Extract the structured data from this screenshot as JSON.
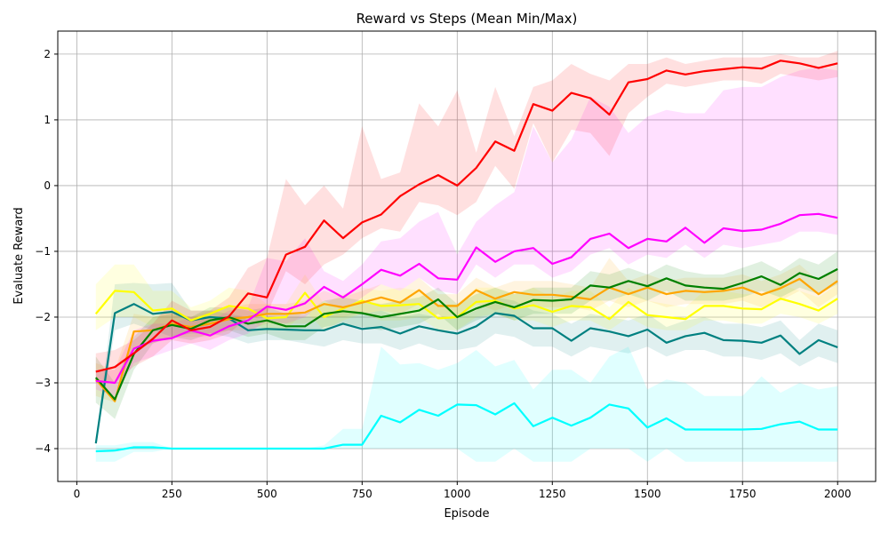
{
  "chart_data": {
    "type": "line",
    "title": "Reward vs Steps (Mean Min/Max)",
    "xlabel": "Episode",
    "ylabel": "Evaluate Reward",
    "xlim": [
      -50,
      2100
    ],
    "ylim": [
      -4.5,
      2.35
    ],
    "xticks": [
      0,
      250,
      500,
      750,
      1000,
      1250,
      1500,
      1750,
      2000
    ],
    "yticks": [
      -4,
      -3,
      -2,
      -1,
      0,
      1,
      2
    ],
    "grid": true,
    "x": [
      50,
      100,
      150,
      200,
      250,
      300,
      350,
      400,
      450,
      500,
      550,
      600,
      650,
      700,
      750,
      800,
      850,
      900,
      950,
      1000,
      1050,
      1100,
      1150,
      1200,
      1250,
      1300,
      1350,
      1400,
      1450,
      1500,
      1550,
      1600,
      1650,
      1700,
      1750,
      1800,
      1850,
      1900,
      1950,
      2000
    ],
    "series": [
      {
        "name": "cyan",
        "color": "#00ffff",
        "values": [
          -4.04,
          -4.03,
          -3.98,
          -3.98,
          -4.0,
          -4.0,
          -4.0,
          -4.0,
          -4.0,
          -4.0,
          -4.0,
          -4.0,
          -4.0,
          -3.94,
          -3.94,
          -3.5,
          -3.6,
          -3.41,
          -3.5,
          -3.33,
          -3.34,
          -3.48,
          -3.31,
          -3.66,
          -3.53,
          -3.65,
          -3.53,
          -3.33,
          -3.39,
          -3.68,
          -3.54,
          -3.71,
          -3.71,
          -3.71,
          -3.71,
          -3.7,
          -3.63,
          -3.59,
          -3.71,
          -3.71
        ],
        "min": [
          -4.2,
          -4.2,
          -4.05,
          -4.05,
          -4.0,
          -4.0,
          -4.0,
          -4.0,
          -4.0,
          -4.0,
          -4.0,
          -4.0,
          -4.0,
          -4.0,
          -4.0,
          -4.0,
          -4.0,
          -4.0,
          -4.0,
          -4.0,
          -4.2,
          -4.2,
          -4.0,
          -4.2,
          -4.2,
          -4.2,
          -4.0,
          -4.0,
          -4.0,
          -4.2,
          -4.0,
          -4.2,
          -4.2,
          -4.2,
          -4.2,
          -4.2,
          -4.2,
          -4.2,
          -4.2,
          -4.2
        ],
        "max": [
          -3.95,
          -3.95,
          -3.9,
          -3.9,
          -4.0,
          -4.0,
          -4.0,
          -4.0,
          -4.0,
          -4.0,
          -4.0,
          -4.0,
          -3.95,
          -3.7,
          -3.7,
          -2.45,
          -2.72,
          -2.7,
          -2.8,
          -2.7,
          -2.5,
          -2.75,
          -2.65,
          -3.1,
          -2.8,
          -2.8,
          -3.0,
          -2.6,
          -2.45,
          -3.1,
          -2.95,
          -3.0,
          -3.2,
          -3.2,
          -3.2,
          -2.9,
          -3.15,
          -3.0,
          -3.1,
          -3.05
        ]
      },
      {
        "name": "teal",
        "color": "#008080",
        "values": [
          -3.92,
          -1.94,
          -1.8,
          -1.95,
          -1.92,
          -2.05,
          -2.0,
          -2.02,
          -2.2,
          -2.18,
          -2.19,
          -2.2,
          -2.2,
          -2.1,
          -2.18,
          -2.15,
          -2.25,
          -2.14,
          -2.2,
          -2.25,
          -2.14,
          -1.94,
          -1.98,
          -2.17,
          -2.17,
          -2.36,
          -2.17,
          -2.22,
          -2.29,
          -2.19,
          -2.39,
          -2.29,
          -2.24,
          -2.35,
          -2.36,
          -2.39,
          -2.28,
          -2.56,
          -2.35,
          -2.46
        ],
        "min": [
          -3.95,
          -2.2,
          -2.1,
          -2.2,
          -2.3,
          -2.25,
          -2.25,
          -2.3,
          -2.4,
          -2.35,
          -2.35,
          -2.4,
          -2.45,
          -2.35,
          -2.4,
          -2.4,
          -2.5,
          -2.4,
          -2.5,
          -2.5,
          -2.45,
          -2.25,
          -2.3,
          -2.45,
          -2.45,
          -2.6,
          -2.45,
          -2.5,
          -2.55,
          -2.45,
          -2.6,
          -2.5,
          -2.5,
          -2.6,
          -2.6,
          -2.65,
          -2.55,
          -2.75,
          -2.6,
          -2.7
        ],
        "max": [
          -3.9,
          -1.5,
          -1.48,
          -1.5,
          -1.48,
          -1.9,
          -1.9,
          -1.95,
          -2.0,
          -2.0,
          -2.0,
          -2.0,
          -2.0,
          -1.9,
          -1.95,
          -1.9,
          -2.0,
          -1.95,
          -2.0,
          -2.0,
          -1.9,
          -1.7,
          -1.75,
          -1.9,
          -1.95,
          -2.1,
          -1.95,
          -2.0,
          -2.05,
          -1.95,
          -2.15,
          -2.05,
          -2.0,
          -2.1,
          -2.1,
          -2.15,
          -2.05,
          -2.35,
          -2.1,
          -2.2
        ]
      },
      {
        "name": "yellow",
        "color": "#ffff00",
        "values": [
          -1.95,
          -1.6,
          -1.62,
          -1.9,
          -1.87,
          -2.05,
          -1.95,
          -1.83,
          -1.87,
          -2.02,
          -2.0,
          -1.63,
          -2.0,
          -1.87,
          -1.75,
          -1.83,
          -1.82,
          -1.8,
          -2.02,
          -2.0,
          -1.77,
          -1.75,
          -1.87,
          -1.82,
          -1.92,
          -1.83,
          -1.85,
          -2.03,
          -1.77,
          -1.97,
          -2.0,
          -2.03,
          -1.83,
          -1.83,
          -1.87,
          -1.88,
          -1.72,
          -1.8,
          -1.9,
          -1.72
        ],
        "min": [
          -2.2,
          -2.0,
          -2.0,
          -2.15,
          -2.1,
          -2.2,
          -2.1,
          -2.05,
          -2.05,
          -2.2,
          -2.2,
          -1.9,
          -2.2,
          -2.05,
          -1.95,
          -2.05,
          -2.05,
          -2.0,
          -2.2,
          -2.2,
          -2.0,
          -1.95,
          -2.05,
          -2.05,
          -2.15,
          -2.05,
          -2.05,
          -2.2,
          -2.0,
          -2.15,
          -2.2,
          -2.2,
          -2.05,
          -2.05,
          -2.1,
          -2.1,
          -1.95,
          -2.0,
          -2.1,
          -1.95
        ],
        "max": [
          -1.5,
          -1.2,
          -1.2,
          -1.6,
          -1.6,
          -1.85,
          -1.75,
          -1.55,
          -1.6,
          -1.8,
          -1.8,
          -1.35,
          -1.8,
          -1.65,
          -1.55,
          -1.6,
          -1.55,
          -1.6,
          -1.8,
          -1.8,
          -1.55,
          -1.55,
          -1.65,
          -1.55,
          -1.7,
          -1.6,
          -1.6,
          -1.85,
          -1.55,
          -1.75,
          -1.8,
          -1.85,
          -1.6,
          -1.6,
          -1.65,
          -1.65,
          -1.5,
          -1.6,
          -1.7,
          -1.5
        ]
      },
      {
        "name": "orange",
        "color": "#ffa500",
        "values": [
          -2.95,
          -3.28,
          -2.22,
          -2.2,
          -2.1,
          -2.15,
          -2.1,
          -2.03,
          -2.0,
          -1.95,
          -1.95,
          -1.93,
          -1.8,
          -1.85,
          -1.78,
          -1.7,
          -1.78,
          -1.59,
          -1.83,
          -1.83,
          -1.59,
          -1.72,
          -1.62,
          -1.66,
          -1.66,
          -1.69,
          -1.73,
          -1.55,
          -1.65,
          -1.55,
          -1.65,
          -1.6,
          -1.62,
          -1.6,
          -1.55,
          -1.66,
          -1.56,
          -1.42,
          -1.65,
          -1.45
        ],
        "min": [
          -3.2,
          -3.3,
          -2.5,
          -2.4,
          -2.3,
          -2.3,
          -2.3,
          -2.2,
          -2.2,
          -2.1,
          -2.1,
          -2.1,
          -2.0,
          -2.0,
          -1.95,
          -1.9,
          -1.95,
          -1.8,
          -2.0,
          -2.0,
          -1.8,
          -1.9,
          -1.8,
          -1.85,
          -1.85,
          -1.85,
          -1.9,
          -1.75,
          -1.85,
          -1.75,
          -1.85,
          -1.8,
          -1.8,
          -1.8,
          -1.75,
          -1.85,
          -1.75,
          -1.6,
          -1.85,
          -1.65
        ],
        "max": [
          -2.7,
          -2.8,
          -1.95,
          -2.0,
          -1.9,
          -2.0,
          -1.9,
          -1.85,
          -1.8,
          -1.8,
          -1.8,
          -1.75,
          -1.6,
          -1.7,
          -1.6,
          -1.5,
          -1.6,
          -1.4,
          -1.65,
          -1.65,
          -1.4,
          -1.55,
          -1.45,
          -1.45,
          -1.45,
          -1.5,
          -1.55,
          -1.1,
          -1.45,
          -1.35,
          -1.45,
          -1.4,
          -1.4,
          -1.4,
          -1.35,
          -1.45,
          -1.35,
          -1.2,
          -1.45,
          -1.25
        ]
      },
      {
        "name": "green",
        "color": "#008000",
        "values": [
          -2.92,
          -3.25,
          -2.56,
          -2.2,
          -2.12,
          -2.18,
          -2.05,
          -2.0,
          -2.1,
          -2.05,
          -2.14,
          -2.14,
          -1.95,
          -1.91,
          -1.94,
          -2.0,
          -1.95,
          -1.9,
          -1.73,
          -2.0,
          -1.87,
          -1.77,
          -1.85,
          -1.74,
          -1.75,
          -1.73,
          -1.52,
          -1.55,
          -1.45,
          -1.53,
          -1.41,
          -1.52,
          -1.55,
          -1.57,
          -1.48,
          -1.38,
          -1.51,
          -1.33,
          -1.42,
          -1.27
        ],
        "min": [
          -3.3,
          -3.55,
          -2.8,
          -2.4,
          -2.3,
          -2.35,
          -2.25,
          -2.2,
          -2.3,
          -2.25,
          -2.35,
          -2.35,
          -2.15,
          -2.1,
          -2.15,
          -2.2,
          -2.15,
          -2.1,
          -1.95,
          -2.2,
          -2.05,
          -1.95,
          -2.05,
          -1.95,
          -1.95,
          -1.95,
          -1.75,
          -1.75,
          -1.65,
          -1.75,
          -1.6,
          -1.75,
          -1.75,
          -1.75,
          -1.7,
          -1.6,
          -1.7,
          -1.55,
          -1.65,
          -1.5
        ],
        "max": [
          -2.6,
          -3.0,
          -2.3,
          -2.0,
          -1.95,
          -2.0,
          -1.85,
          -1.85,
          -1.9,
          -1.85,
          -1.95,
          -1.95,
          -1.75,
          -1.7,
          -1.75,
          -1.8,
          -1.75,
          -1.7,
          -1.55,
          -1.8,
          -1.65,
          -1.55,
          -1.65,
          -1.55,
          -1.55,
          -1.55,
          -1.3,
          -1.35,
          -1.25,
          -1.35,
          -1.2,
          -1.3,
          -1.35,
          -1.35,
          -1.25,
          -1.15,
          -1.3,
          -1.1,
          -1.2,
          -1.0
        ]
      },
      {
        "name": "magenta",
        "color": "#ff00ff",
        "values": [
          -2.97,
          -3.0,
          -2.48,
          -2.36,
          -2.32,
          -2.2,
          -2.28,
          -2.14,
          -2.05,
          -1.84,
          -1.89,
          -1.79,
          -1.54,
          -1.7,
          -1.5,
          -1.28,
          -1.37,
          -1.19,
          -1.41,
          -1.43,
          -0.94,
          -1.16,
          -1.0,
          -0.95,
          -1.19,
          -1.09,
          -0.81,
          -0.73,
          -0.95,
          -0.81,
          -0.85,
          -0.64,
          -0.87,
          -0.65,
          -0.69,
          -0.67,
          -0.58,
          -0.45,
          -0.43,
          -0.49
        ],
        "min": [
          -3.1,
          -3.2,
          -2.7,
          -2.6,
          -2.5,
          -2.4,
          -2.5,
          -2.35,
          -2.25,
          -2.05,
          -2.1,
          -2.0,
          -1.75,
          -1.9,
          -1.7,
          -1.5,
          -1.6,
          -1.4,
          -1.6,
          -1.65,
          -1.2,
          -1.4,
          -1.2,
          -1.2,
          -1.4,
          -1.3,
          -1.05,
          -0.95,
          -1.2,
          -1.05,
          -1.1,
          -0.9,
          -1.1,
          -0.9,
          -0.95,
          -0.9,
          -0.85,
          -0.7,
          -0.7,
          -0.75
        ],
        "max": [
          -2.8,
          -2.8,
          -2.2,
          -2.1,
          -2.1,
          -2.0,
          -2.05,
          -1.9,
          -1.85,
          -1.1,
          -1.15,
          -0.8,
          -1.3,
          -1.45,
          -1.2,
          -0.85,
          -0.8,
          -0.55,
          -0.4,
          -1.05,
          -0.55,
          -0.3,
          -0.1,
          0.9,
          0.35,
          0.7,
          1.35,
          1.2,
          0.8,
          1.05,
          1.15,
          1.1,
          1.1,
          1.45,
          1.5,
          1.5,
          1.65,
          1.75,
          1.8,
          1.75
        ]
      },
      {
        "name": "red",
        "color": "#ff0000",
        "values": [
          -2.83,
          -2.76,
          -2.55,
          -2.33,
          -2.05,
          -2.2,
          -2.15,
          -1.99,
          -1.64,
          -1.7,
          -1.05,
          -0.93,
          -0.53,
          -0.8,
          -0.56,
          -0.44,
          -0.16,
          0.02,
          0.16,
          0.0,
          0.27,
          0.67,
          0.53,
          1.24,
          1.14,
          1.41,
          1.33,
          1.08,
          1.57,
          1.62,
          1.75,
          1.69,
          1.74,
          1.77,
          1.8,
          1.78,
          1.9,
          1.86,
          1.79,
          1.86
        ],
        "min": [
          -3.0,
          -3.0,
          -2.75,
          -2.6,
          -2.35,
          -2.4,
          -2.35,
          -2.25,
          -2.0,
          -1.95,
          -1.3,
          -1.5,
          -1.2,
          -1.05,
          -0.8,
          -0.65,
          -0.7,
          -0.25,
          -0.3,
          -0.45,
          -0.25,
          0.3,
          -0.05,
          0.95,
          0.35,
          0.85,
          0.8,
          0.45,
          1.1,
          1.35,
          1.55,
          1.5,
          1.55,
          1.6,
          1.6,
          1.55,
          1.7,
          1.65,
          1.6,
          1.65
        ],
        "max": [
          -2.55,
          -2.5,
          -2.35,
          -2.1,
          -1.75,
          -1.9,
          -1.9,
          -1.7,
          -1.25,
          -1.1,
          0.1,
          -0.3,
          0.0,
          -0.35,
          0.9,
          0.1,
          0.2,
          1.25,
          0.9,
          1.45,
          0.5,
          1.5,
          0.75,
          1.5,
          1.6,
          1.85,
          1.7,
          1.6,
          1.85,
          1.85,
          1.95,
          1.85,
          1.9,
          1.95,
          1.95,
          1.95,
          2.0,
          1.95,
          1.95,
          2.05
        ]
      }
    ]
  }
}
